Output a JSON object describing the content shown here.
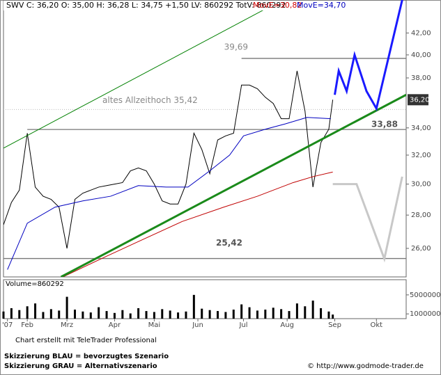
{
  "header": {
    "quote": "SWV C: 36,20 O: 35,00 H: 36,28 L: 34,75 +1,50 LV: 860292 TotV: 860292",
    "ma_red": "MovE=30,82",
    "ma_blue": "MovE=34,70",
    "volume_label": "Volume=860292"
  },
  "footer": {
    "credit": "Chart erstellt mit TeleTrader Professional",
    "blue_note": "Skizzierung BLAU = bevorzugtes Szenario",
    "gray_note": "Skizzierung GRAU = Alternativszenario",
    "source": "© http://www.godmode-trader.de"
  },
  "chart_data": [
    {
      "type": "line",
      "log_scale": true,
      "xlim": [
        0,
        203
      ],
      "ylim": [
        24.4,
        45.2
      ],
      "yticks": [
        {
          "value": 26,
          "label": "26,00"
        },
        {
          "value": 28,
          "label": "28,00"
        },
        {
          "value": 30,
          "label": "30,00"
        },
        {
          "value": 32,
          "label": "32,00"
        },
        {
          "value": 34,
          "label": "34,00"
        },
        {
          "value": 38,
          "label": "38,00"
        },
        {
          "value": 40,
          "label": "40,00"
        },
        {
          "value": 42,
          "label": "42,00"
        }
      ],
      "last": {
        "value": 36.2,
        "label": "36,20"
      },
      "series": [
        {
          "color": "#000000",
          "width": 1,
          "x": [
            0,
            4,
            8,
            12,
            16,
            20,
            24,
            28,
            32,
            36,
            40,
            44,
            48,
            52,
            56,
            60,
            64,
            68,
            72,
            76,
            80,
            84,
            88,
            92,
            96,
            100,
            104,
            108,
            112,
            116,
            120,
            124,
            128,
            132,
            136,
            140,
            144,
            148,
            152,
            156,
            160,
            164,
            166
          ],
          "values": [
            27.4,
            28.8,
            29.6,
            33.6,
            29.8,
            29.2,
            29.0,
            28.5,
            26.0,
            29.0,
            29.4,
            29.6,
            29.8,
            29.9,
            30.0,
            30.1,
            30.9,
            31.1,
            30.9,
            30.0,
            28.9,
            28.7,
            28.7,
            30.0,
            33.6,
            32.4,
            30.7,
            33.1,
            33.4,
            33.6,
            37.4,
            37.4,
            37.1,
            36.4,
            35.9,
            34.7,
            34.7,
            38.6,
            35.3,
            29.8,
            32.9,
            33.9,
            36.2
          ]
        },
        {
          "color": "#0000c0",
          "width": 1,
          "x": [
            2,
            12,
            26,
            40,
            54,
            68,
            82,
            93,
            104,
            114,
            121,
            132,
            142,
            153,
            165
          ],
          "values": [
            24.8,
            27.5,
            28.5,
            28.9,
            29.2,
            29.9,
            29.8,
            29.8,
            30.9,
            32.0,
            33.4,
            33.9,
            34.3,
            34.8,
            34.7
          ]
        },
        {
          "color": "#c00000",
          "width": 1,
          "x": [
            30,
            51,
            68,
            90,
            111,
            128,
            146,
            156,
            166
          ],
          "values": [
            24.4,
            25.5,
            26.4,
            27.6,
            28.5,
            29.2,
            30.1,
            30.5,
            30.82
          ]
        },
        {
          "color": "#008000",
          "width": 1,
          "x": [
            0,
            131
          ],
          "values": [
            32.5,
            44.2
          ]
        },
        {
          "color": "#1a8a1a",
          "width": 3,
          "x": [
            29,
            203
          ],
          "values": [
            24.4,
            36.6
          ]
        },
        {
          "color": "#1a1aff",
          "width": 3,
          "x": [
            167,
            169,
            173,
            177,
            183,
            188,
            201
          ],
          "values": [
            36.6,
            38.6,
            36.9,
            40.0,
            36.9,
            35.5,
            45.2
          ]
        },
        {
          "color": "#c8c8c8",
          "width": 3,
          "x": [
            166,
            178,
            192,
            201
          ],
          "values": [
            30.0,
            30.0,
            25.4,
            30.5
          ]
        }
      ],
      "levels": [
        {
          "value": 39.69,
          "label": "39,69",
          "x_start": 120
        },
        {
          "value": 35.42,
          "label": "altes Allzeithoch   35,42",
          "x_start": 0
        },
        {
          "value": 33.88,
          "label": "33,88",
          "x_start": 12
        },
        {
          "value": 25.42,
          "label": "25,42",
          "x_start": 0
        }
      ]
    },
    {
      "type": "bar",
      "color": "#000000",
      "xlim": [
        0,
        203
      ],
      "ylim": [
        0,
        8200000
      ],
      "yticks": [
        1000000,
        5000000
      ],
      "xticks": [
        {
          "value": 2,
          "label": "'07"
        },
        {
          "value": 12,
          "label": "Feb"
        },
        {
          "value": 32,
          "label": "Mrz"
        },
        {
          "value": 56,
          "label": "Apr"
        },
        {
          "value": 76,
          "label": "Mai"
        },
        {
          "value": 98,
          "label": "Jun"
        },
        {
          "value": 121,
          "label": "Jul"
        },
        {
          "value": 143,
          "label": "Aug"
        },
        {
          "value": 167,
          "label": "Sep"
        },
        {
          "value": 188,
          "label": "Okt"
        }
      ],
      "x": [
        0,
        4,
        8,
        12,
        16,
        20,
        24,
        28,
        32,
        36,
        40,
        44,
        48,
        52,
        56,
        60,
        64,
        68,
        72,
        76,
        80,
        84,
        88,
        92,
        96,
        100,
        104,
        108,
        112,
        116,
        120,
        124,
        128,
        132,
        136,
        140,
        144,
        148,
        152,
        156,
        160,
        164,
        166
      ],
      "values": [
        1500000,
        2200000,
        1800000,
        2600000,
        3200000,
        1400000,
        2000000,
        1700000,
        4600000,
        1900000,
        1500000,
        1300000,
        2400000,
        1600000,
        1200000,
        1800000,
        1100000,
        2200000,
        1600000,
        1400000,
        2000000,
        1700000,
        1300000,
        1500000,
        5000000,
        2100000,
        1800000,
        1600000,
        1400000,
        1900000,
        3000000,
        2400000,
        1700000,
        1900000,
        2300000,
        2000000,
        1600000,
        3200000,
        2600000,
        3800000,
        2200000,
        1500000,
        860292
      ]
    }
  ]
}
